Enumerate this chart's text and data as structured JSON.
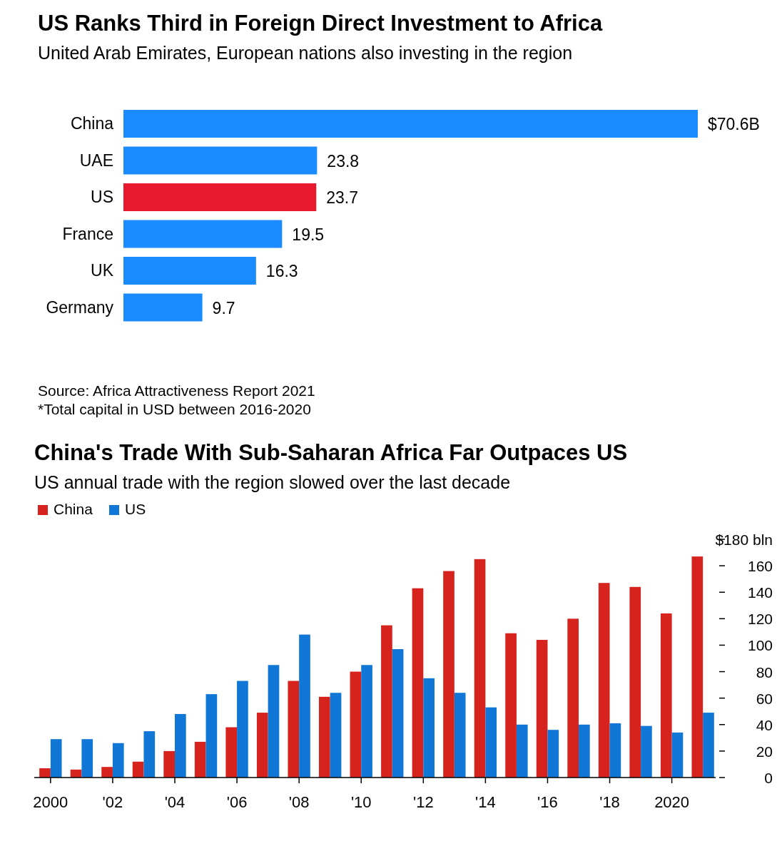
{
  "chart_data": [
    {
      "type": "bar",
      "orientation": "horizontal",
      "title": "US Ranks Third in Foreign Direct Investment to Africa",
      "subtitle": "United Arab Emirates, European nations also investing in the region",
      "categories": [
        "China",
        "UAE",
        "US",
        "France",
        "UK",
        "Germany"
      ],
      "values": [
        70.6,
        23.8,
        23.7,
        19.5,
        16.3,
        9.7
      ],
      "value_labels": [
        "$70.6B",
        "23.8",
        "23.7",
        "19.5",
        "16.3",
        "9.7"
      ],
      "colors": [
        "#1a8cff",
        "#1a8cff",
        "#e8192f",
        "#1a8cff",
        "#1a8cff",
        "#1a8cff"
      ],
      "tick_labels": "y",
      "annotations": [
        "Source: Africa Attractiveness Report 2021",
        "*Total capital in USD between 2016-2020"
      ]
    },
    {
      "type": "bar",
      "title": "China's Trade With Sub-Saharan Africa Far Outpaces US",
      "subtitle": "US annual trade with the region slowed over the last decade",
      "categories": [
        "2000",
        null,
        "'02",
        null,
        "'04",
        null,
        "'06",
        null,
        "'08",
        null,
        "'10",
        null,
        "'12",
        null,
        "'14",
        null,
        "'16",
        null,
        "'18",
        null,
        "2020",
        null
      ],
      "series": [
        {
          "name": "China",
          "color": "#d7231e",
          "values": [
            7,
            6,
            8,
            12,
            20,
            27,
            38,
            49,
            73,
            61,
            80,
            115,
            143,
            156,
            165,
            109,
            104,
            120,
            147,
            144,
            124,
            167
          ]
        },
        {
          "name": "US",
          "color": "#1177d6",
          "values": [
            29,
            29,
            26,
            35,
            48,
            63,
            73,
            85,
            108,
            64,
            85,
            97,
            75,
            64,
            53,
            40,
            36,
            40,
            41,
            39,
            34,
            49
          ]
        }
      ],
      "ylim": [
        0,
        180
      ],
      "yticks": [
        0,
        20,
        40,
        60,
        80,
        100,
        120,
        140,
        160,
        {
          "value": 180,
          "label": "$180 bln"
        }
      ],
      "legend": "top left",
      "grid": false
    }
  ]
}
